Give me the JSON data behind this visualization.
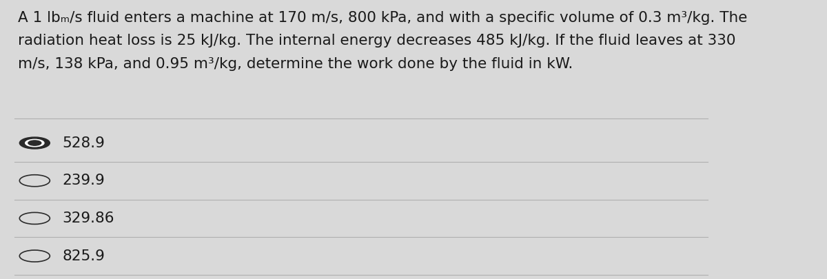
{
  "question_text_lines": [
    "A 1 lbₘ/s fluid enters a machine at 170 m/s, 800 kPa, and with a specific volume of 0.3 m³/kg. The",
    "radiation heat loss is 25 kJ/kg. The internal energy decreases 485 kJ/kg. If the fluid leaves at 330",
    "m/s, 138 kPa, and 0.95 m³/kg, determine the work done by the fluid in kW."
  ],
  "options": [
    {
      "label": "528.9",
      "selected": true
    },
    {
      "label": "239.9",
      "selected": false
    },
    {
      "label": "329.86",
      "selected": false
    },
    {
      "label": "825.9",
      "selected": false
    }
  ],
  "bg_color": "#d9d9d9",
  "text_color": "#1a1a1a",
  "divider_color": "#b0b0b0",
  "font_size_question": 15.5,
  "font_size_options": 15.5,
  "selected_circle_color": "#2a2a2a",
  "unselected_circle_color": "#2a2a2a"
}
